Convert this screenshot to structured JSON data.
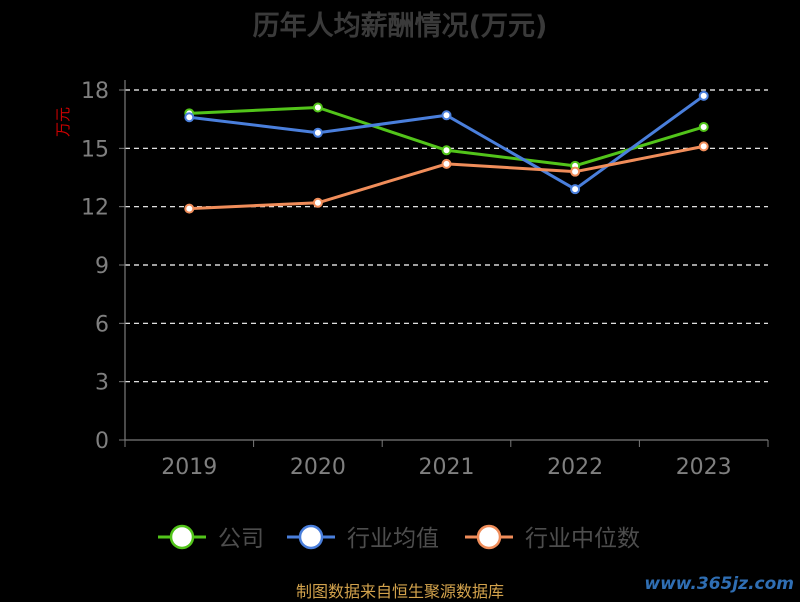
{
  "page_title": "历年人均薪酬情况(万元)",
  "source_note": "制图数据来自恒生聚源数据库",
  "watermark": "www.365jz.com",
  "colors": {
    "background": "#000000",
    "axis": "#7a7a7a",
    "grid": "#ffffff",
    "tick_text": "#7f7f7f",
    "ylabel": "#cc0000",
    "legend_text": "#4d4d4d"
  },
  "chart_data": {
    "type": "line",
    "title": "历年人均薪酬情况(万元)",
    "ylabel": "万元",
    "xlabel": "",
    "categories": [
      "2019",
      "2020",
      "2021",
      "2022",
      "2023"
    ],
    "ylim": [
      0,
      18
    ],
    "yticks": [
      0,
      3,
      6,
      9,
      12,
      15,
      18
    ],
    "grid": true,
    "legend_position": "bottom",
    "series": [
      {
        "name": "公司",
        "color": "#52c41a",
        "values": [
          16.8,
          17.1,
          14.9,
          14.1,
          16.1
        ]
      },
      {
        "name": "行业均值",
        "color": "#4a7fdc",
        "values": [
          16.6,
          15.8,
          16.7,
          12.9,
          17.7
        ]
      },
      {
        "name": "行业中位数",
        "color": "#f08d5a",
        "values": [
          11.9,
          12.2,
          14.2,
          13.8,
          15.1
        ]
      }
    ]
  }
}
